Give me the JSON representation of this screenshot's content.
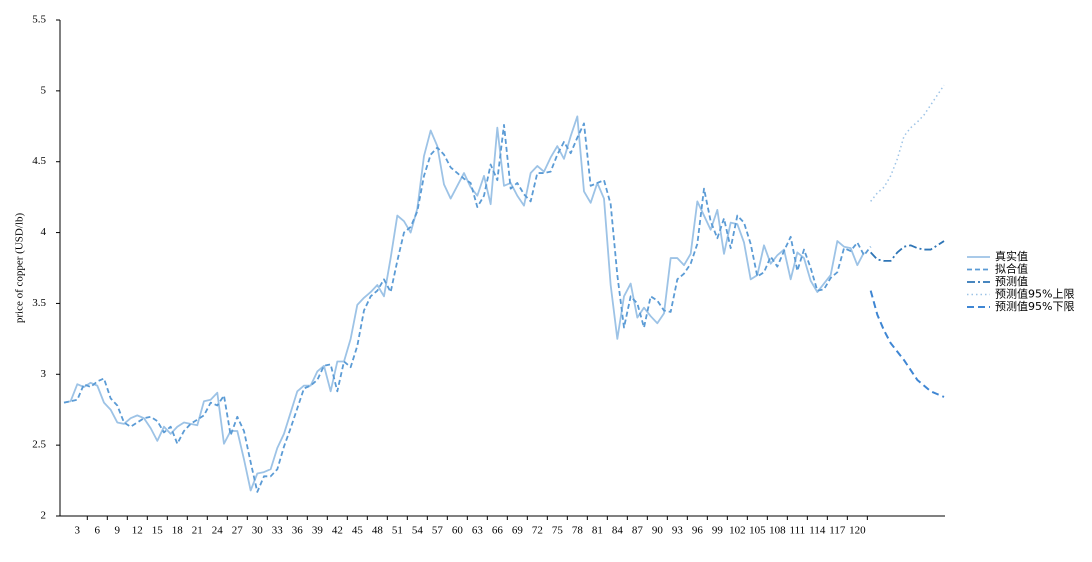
{
  "chart_data": {
    "type": "line",
    "y_label": "price of copper (USD/lb)",
    "xlim": [
      0,
      134
    ],
    "xticks": [
      3,
      6,
      9,
      12,
      15,
      18,
      21,
      24,
      27,
      30,
      33,
      36,
      39,
      42,
      45,
      48,
      51,
      54,
      57,
      60,
      63,
      66,
      69,
      72,
      75,
      78,
      81,
      84,
      87,
      90,
      93,
      96,
      99,
      102,
      105,
      108,
      111,
      114,
      117,
      120
    ],
    "ylim": [
      2,
      5.5
    ],
    "yticks": [
      2,
      2.5,
      3,
      3.5,
      4,
      4.5,
      5,
      5.5
    ],
    "grid": false,
    "legend": "right",
    "series": [
      {
        "name": "真实值",
        "color": "#9dc3e6",
        "dash": "solid",
        "x": [
          1,
          2,
          3,
          4,
          5,
          6,
          7,
          8,
          9,
          10,
          11,
          12,
          13,
          14,
          15,
          16,
          17,
          18,
          19,
          20,
          21,
          22,
          23,
          24,
          25,
          26,
          27,
          28,
          29,
          30,
          31,
          32,
          33,
          34,
          35,
          36,
          37,
          38,
          39,
          40,
          41,
          42,
          43,
          44,
          45,
          46,
          47,
          48,
          49,
          50,
          51,
          52,
          53,
          54,
          55,
          56,
          57,
          58,
          59,
          60,
          61,
          62,
          63,
          64,
          65,
          66,
          67,
          68,
          69,
          70,
          71,
          72,
          73,
          74,
          75,
          76,
          77,
          78,
          79,
          80,
          81,
          82,
          83,
          84,
          85,
          86,
          87,
          88,
          89,
          90,
          91,
          92,
          93,
          94,
          95,
          96,
          97,
          98,
          99,
          100,
          101,
          102,
          103,
          104,
          105,
          106,
          107,
          108,
          109,
          110,
          111,
          112,
          113,
          114,
          115,
          116,
          117,
          118,
          119,
          120,
          121
        ],
        "values": [
          2.8,
          2.81,
          2.93,
          2.91,
          2.94,
          2.92,
          2.8,
          2.75,
          2.66,
          2.65,
          2.69,
          2.71,
          2.69,
          2.62,
          2.53,
          2.63,
          2.58,
          2.63,
          2.66,
          2.65,
          2.64,
          2.81,
          2.82,
          2.87,
          2.51,
          2.6,
          2.6,
          2.4,
          2.18,
          2.3,
          2.31,
          2.33,
          2.48,
          2.58,
          2.73,
          2.88,
          2.92,
          2.92,
          3.02,
          3.06,
          2.88,
          3.09,
          3.09,
          3.25,
          3.49,
          3.54,
          3.58,
          3.63,
          3.55,
          3.82,
          4.12,
          4.08,
          4.0,
          4.17,
          4.54,
          4.72,
          4.61,
          4.34,
          4.24,
          4.33,
          4.42,
          4.32,
          4.26,
          4.4,
          4.2,
          4.74,
          4.33,
          4.35,
          4.26,
          4.19,
          4.42,
          4.47,
          4.43,
          4.53,
          4.61,
          4.52,
          4.68,
          4.82,
          4.29,
          4.21,
          4.35,
          4.24,
          3.63,
          3.25,
          3.55,
          3.64,
          3.4,
          3.47,
          3.41,
          3.36,
          3.43,
          3.82,
          3.82,
          3.77,
          3.85,
          4.22,
          4.12,
          4.02,
          4.16,
          3.85,
          4.07,
          4.06,
          3.93,
          3.67,
          3.7,
          3.91,
          3.78,
          3.84,
          3.88,
          3.67,
          3.86,
          3.82,
          3.66,
          3.58,
          3.64,
          3.7,
          3.94,
          3.9,
          3.89,
          3.77,
          3.86
        ]
      },
      {
        "name": "拟合值",
        "color": "#5b9bd5",
        "dash": "dashed",
        "x": [
          1,
          2,
          3,
          4,
          5,
          6,
          7,
          8,
          9,
          10,
          11,
          12,
          13,
          14,
          15,
          16,
          17,
          18,
          19,
          20,
          21,
          22,
          23,
          24,
          25,
          26,
          27,
          28,
          29,
          30,
          31,
          32,
          33,
          34,
          35,
          36,
          37,
          38,
          39,
          40,
          41,
          42,
          43,
          44,
          45,
          46,
          47,
          48,
          49,
          50,
          51,
          52,
          53,
          54,
          55,
          56,
          57,
          58,
          59,
          60,
          61,
          62,
          63,
          64,
          65,
          66,
          67,
          68,
          69,
          70,
          71,
          72,
          73,
          74,
          75,
          76,
          77,
          78,
          79,
          80,
          81,
          82,
          83,
          84,
          85,
          86,
          87,
          88,
          89,
          90,
          91,
          92,
          93,
          94,
          95,
          96,
          97,
          98,
          99,
          100,
          101,
          102,
          103,
          104,
          105,
          106,
          107,
          108,
          109,
          110,
          111,
          112,
          113,
          114,
          115,
          116,
          117,
          118,
          119,
          120,
          121,
          122
        ],
        "values": [
          2.8,
          2.81,
          2.82,
          2.93,
          2.91,
          2.95,
          2.97,
          2.83,
          2.78,
          2.66,
          2.63,
          2.66,
          2.69,
          2.7,
          2.67,
          2.59,
          2.63,
          2.51,
          2.6,
          2.65,
          2.68,
          2.71,
          2.8,
          2.78,
          2.85,
          2.57,
          2.7,
          2.6,
          2.38,
          2.17,
          2.28,
          2.28,
          2.33,
          2.49,
          2.62,
          2.76,
          2.9,
          2.92,
          2.96,
          3.06,
          3.07,
          2.88,
          3.09,
          3.05,
          3.2,
          3.45,
          3.55,
          3.59,
          3.67,
          3.58,
          3.8,
          4.0,
          4.04,
          4.15,
          4.4,
          4.55,
          4.6,
          4.55,
          4.46,
          4.42,
          4.38,
          4.35,
          4.18,
          4.26,
          4.48,
          4.37,
          4.76,
          4.31,
          4.35,
          4.27,
          4.22,
          4.42,
          4.42,
          4.43,
          4.55,
          4.64,
          4.56,
          4.67,
          4.77,
          4.33,
          4.35,
          4.37,
          4.2,
          3.7,
          3.33,
          3.55,
          3.5,
          3.33,
          3.55,
          3.52,
          3.45,
          3.44,
          3.67,
          3.71,
          3.78,
          3.92,
          4.31,
          4.08,
          3.96,
          4.1,
          3.89,
          4.12,
          4.07,
          3.92,
          3.69,
          3.72,
          3.83,
          3.76,
          3.87,
          3.97,
          3.73,
          3.88,
          3.75,
          3.59,
          3.6,
          3.68,
          3.72,
          3.89,
          3.87,
          3.93,
          3.84,
          3.9
        ]
      },
      {
        "name": "预测值",
        "color": "#2e75b6",
        "dash": "dashdot",
        "x": [
          122,
          123,
          124,
          125,
          126,
          127,
          128,
          129,
          130,
          131,
          132,
          133
        ],
        "values": [
          3.86,
          3.81,
          3.8,
          3.8,
          3.86,
          3.9,
          3.91,
          3.89,
          3.88,
          3.88,
          3.91,
          3.94
        ]
      },
      {
        "name": "预测值95%上限",
        "color": "#9dc3e6",
        "dash": "dotted",
        "x": [
          122,
          123,
          124,
          125,
          126,
          127,
          128,
          129,
          130,
          131,
          132,
          133
        ],
        "values": [
          4.22,
          4.28,
          4.32,
          4.4,
          4.52,
          4.68,
          4.74,
          4.78,
          4.83,
          4.9,
          4.97,
          5.04
        ]
      },
      {
        "name": "预测值95%下限",
        "color": "#3f86d3",
        "dash": "longdash",
        "x": [
          122,
          123,
          124,
          125,
          126,
          127,
          128,
          129,
          130,
          131,
          132,
          133
        ],
        "values": [
          3.59,
          3.42,
          3.31,
          3.22,
          3.16,
          3.1,
          3.03,
          2.96,
          2.92,
          2.88,
          2.86,
          2.84
        ]
      }
    ]
  }
}
